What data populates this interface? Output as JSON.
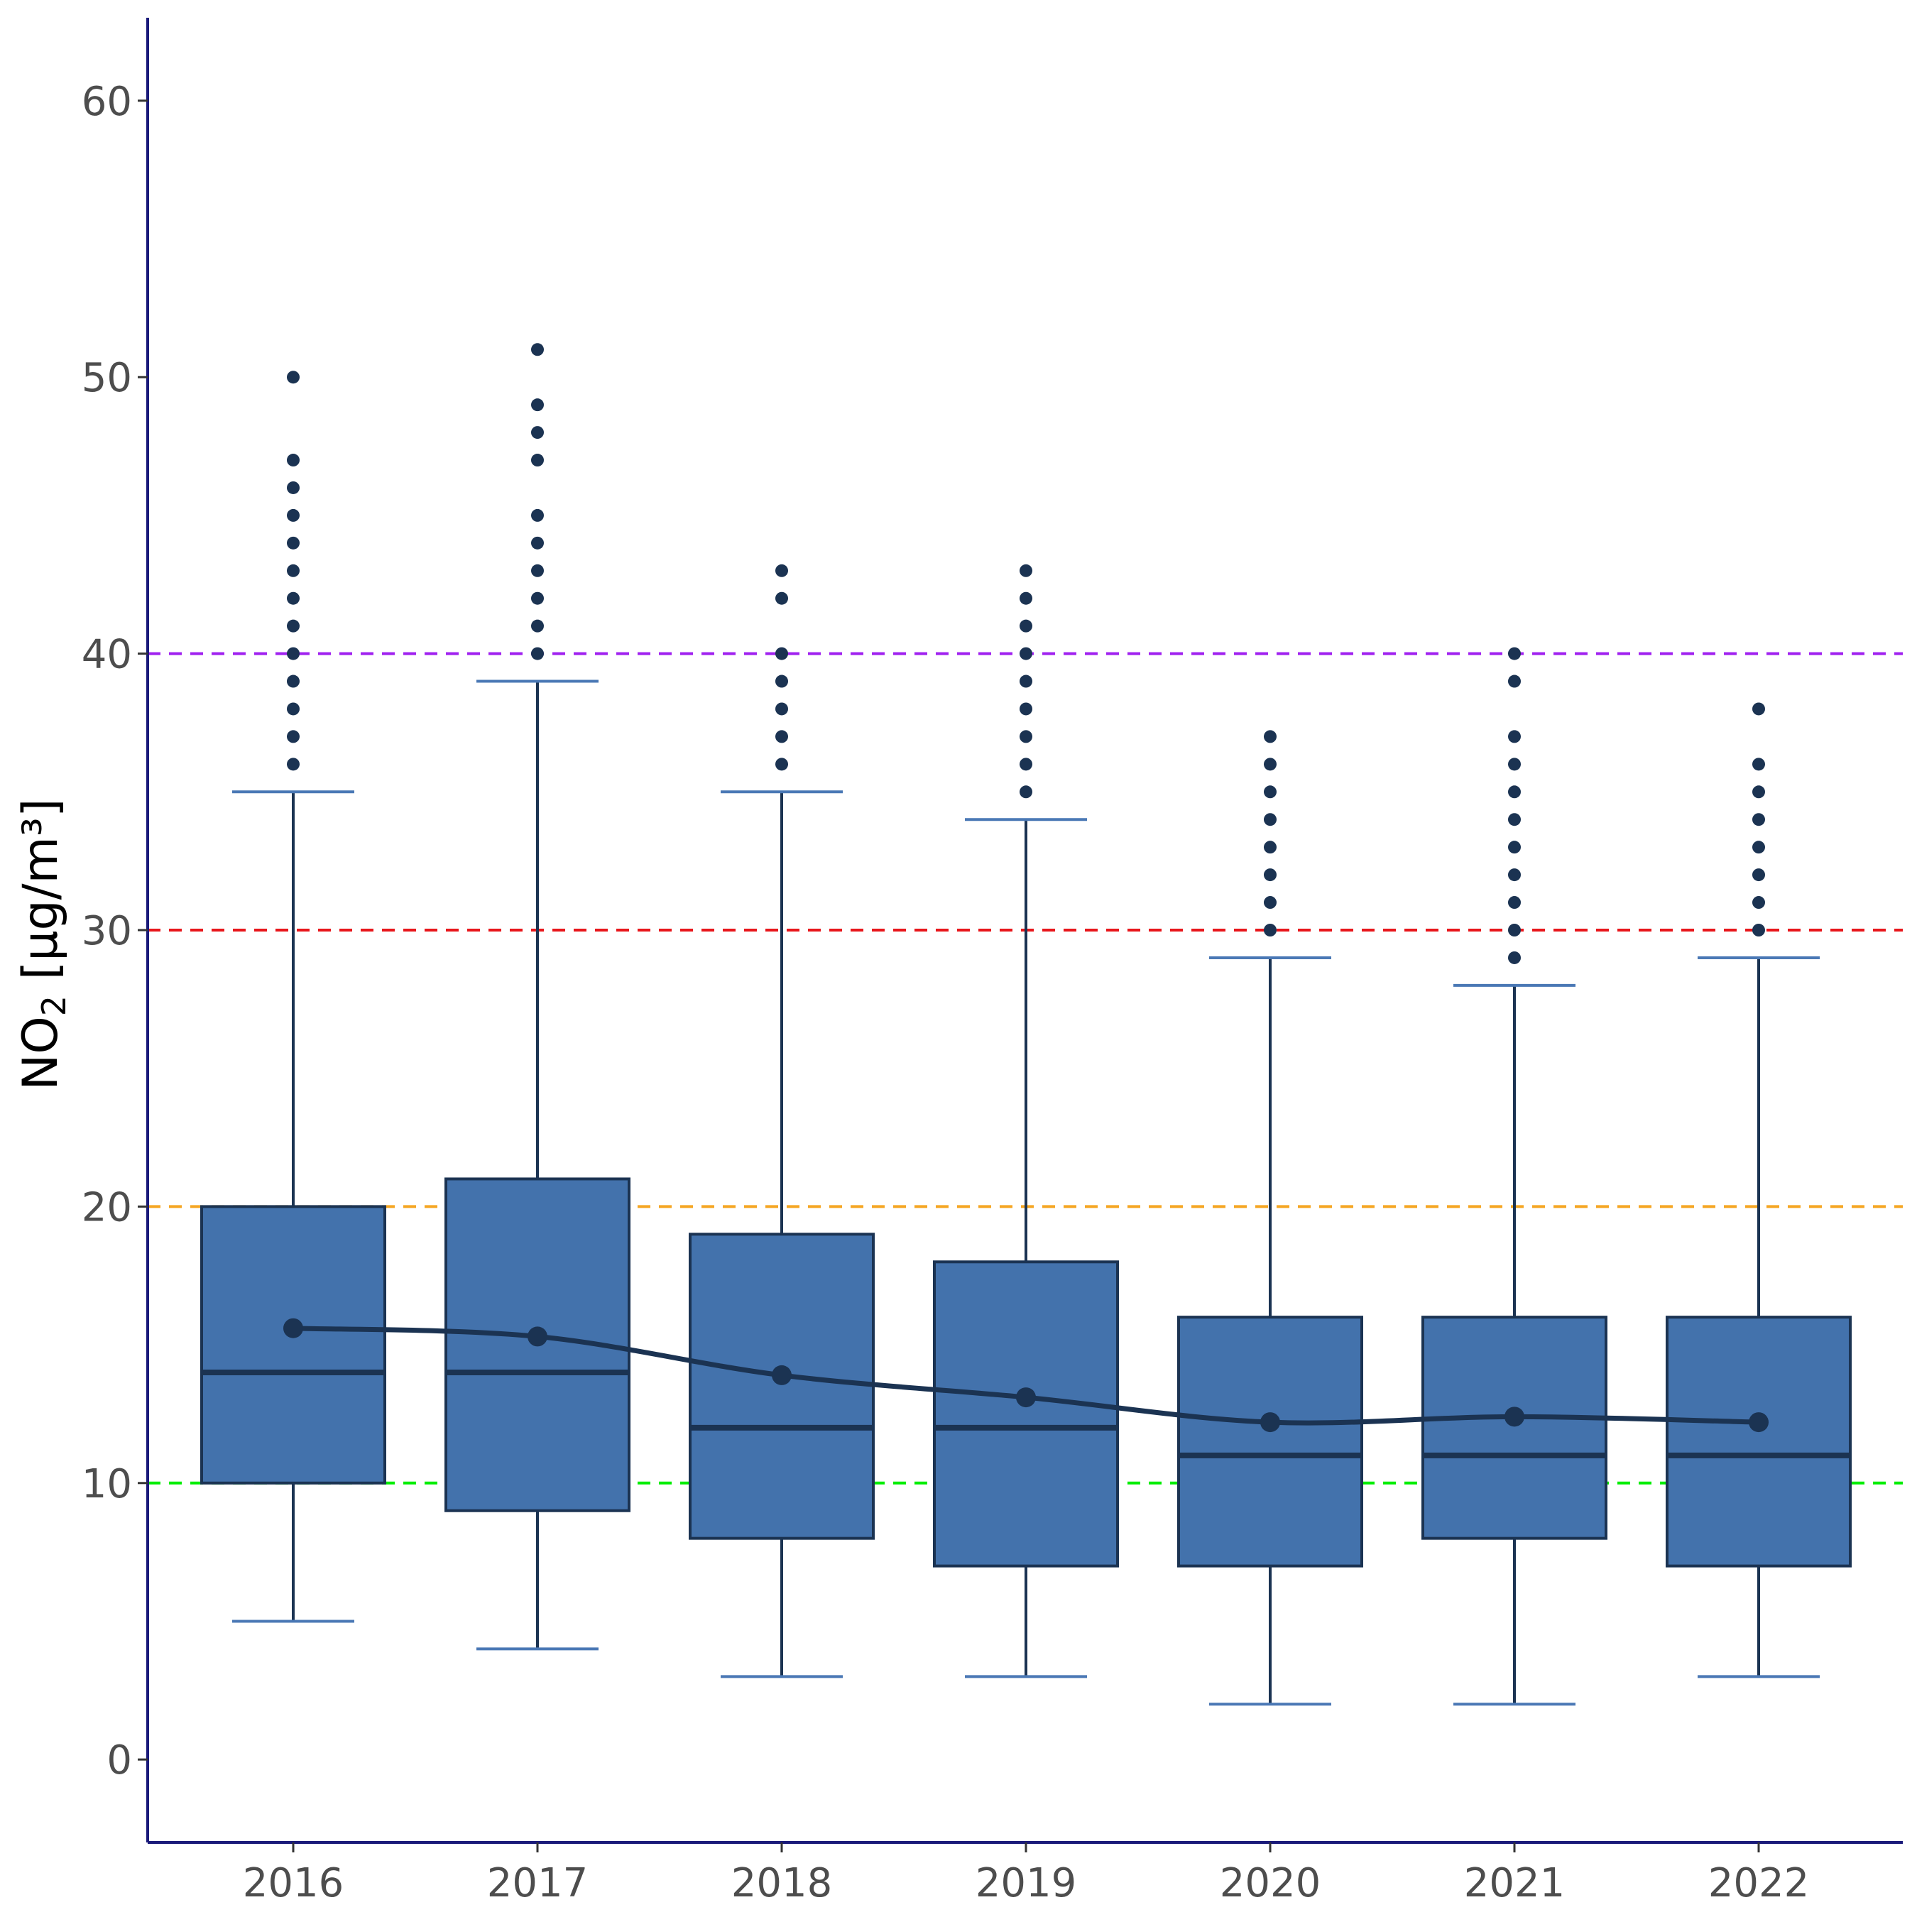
{
  "chart_data": {
    "type": "box",
    "ylabel": "NO",
    "ylabel_sub": "2",
    "ylabel_unit": " [µg/m³]",
    "ylim": [
      -3,
      63
    ],
    "yticks": [
      0,
      10,
      20,
      30,
      40,
      50,
      60
    ],
    "categories": [
      "2016",
      "2017",
      "2018",
      "2019",
      "2020",
      "2021",
      "2022"
    ],
    "boxes": [
      {
        "lower_whisker": 5,
        "q1": 10,
        "median": 14,
        "q3": 20,
        "upper_whisker": 35,
        "mean": 15.6,
        "outliers": [
          36,
          37,
          38,
          39,
          40,
          41,
          42,
          43,
          44,
          45,
          46,
          47,
          50
        ]
      },
      {
        "lower_whisker": 4,
        "q1": 9,
        "median": 14,
        "q3": 21,
        "upper_whisker": 39,
        "mean": 15.3,
        "outliers": [
          40,
          41,
          42,
          43,
          44,
          45,
          47,
          48,
          49,
          51
        ]
      },
      {
        "lower_whisker": 3,
        "q1": 8,
        "median": 12,
        "q3": 19,
        "upper_whisker": 35,
        "mean": 13.9,
        "outliers": [
          36,
          37,
          38,
          39,
          40,
          42,
          43
        ]
      },
      {
        "lower_whisker": 3,
        "q1": 7,
        "median": 12,
        "q3": 18,
        "upper_whisker": 34,
        "mean": 13.1,
        "outliers": [
          35,
          36,
          37,
          38,
          39,
          40,
          41,
          42,
          43
        ]
      },
      {
        "lower_whisker": 2,
        "q1": 7,
        "median": 11,
        "q3": 16,
        "upper_whisker": 29,
        "mean": 12.2,
        "outliers": [
          30,
          31,
          32,
          33,
          34,
          35,
          36,
          37
        ]
      },
      {
        "lower_whisker": 2,
        "q1": 8,
        "median": 11,
        "q3": 16,
        "upper_whisker": 28,
        "mean": 12.4,
        "outliers": [
          29,
          30,
          31,
          32,
          33,
          34,
          35,
          36,
          37,
          39,
          40
        ]
      },
      {
        "lower_whisker": 3,
        "q1": 7,
        "median": 11,
        "q3": 16,
        "upper_whisker": 29,
        "mean": 12.2,
        "outliers": [
          30,
          31,
          32,
          33,
          34,
          35,
          36,
          38
        ]
      }
    ],
    "reference_lines": [
      {
        "value": 10,
        "color": "#00ee00"
      },
      {
        "value": 20,
        "color": "#f5a623"
      },
      {
        "value": 30,
        "color": "#e8161b"
      },
      {
        "value": 40,
        "color": "#a020f0"
      }
    ],
    "trend_line": "smoothed line through yearly means",
    "colors": {
      "box_fill": "#4372ac",
      "box_stroke": "#1b3352",
      "whisker_cap": "#4a78b5",
      "points": "#1b3352",
      "axis": "#1a1a7a"
    },
    "grid": false
  }
}
